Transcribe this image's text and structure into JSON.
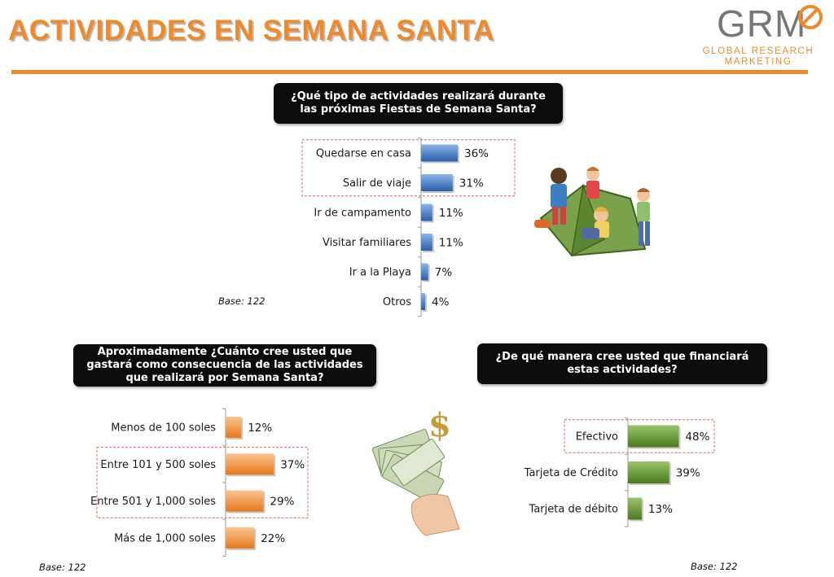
{
  "page": {
    "title": "ACTIVIDADES EN SEMANA SANTA"
  },
  "logo": {
    "letters": "GRM",
    "line1": "GLOBAL RESEARCH",
    "line2": "MARKETING"
  },
  "questions": {
    "q1": "¿Qué tipo de actividades realizará durante las próximas Fiestas de Semana Santa?",
    "q2": "Aproximadamente ¿Cuánto cree usted que gastará como consecuencia de las actividades que realizará por Semana Santa?",
    "q3": "¿De qué manera cree usted que financiará estas actividades?"
  },
  "bases": {
    "b1": "Base: 122",
    "b2": "Base: 122",
    "b3": "Base: 122"
  },
  "colors": {
    "accent": "#ef8a2c",
    "blue": "#3f77c4",
    "orange": "#f28b30",
    "green": "#5e8f2b",
    "highlight": "#e06060"
  },
  "chart_data": [
    {
      "type": "bar",
      "orientation": "horizontal",
      "categories": [
        "Quedarse en casa",
        "Salir de viaje",
        "Ir de campamento",
        "Visitar familiares",
        "Ir a la Playa",
        "Otros"
      ],
      "values": [
        36,
        31,
        11,
        11,
        7,
        4
      ],
      "value_labels": [
        "36%",
        "31%",
        "11%",
        "11%",
        "7%",
        "4%"
      ],
      "highlighted": [
        "Quedarse en casa",
        "Salir de viaje"
      ],
      "bar_color": "blue"
    },
    {
      "type": "bar",
      "orientation": "horizontal",
      "categories": [
        "Menos de 100 soles",
        "Entre 101 y 500 soles",
        "Entre 501 y 1,000 soles",
        "Más de 1,000 soles"
      ],
      "values": [
        12,
        37,
        29,
        22
      ],
      "value_labels": [
        "12%",
        "37%",
        "29%",
        "22%"
      ],
      "highlighted": [
        "Entre 101 y 500 soles",
        "Entre 501 y 1,000 soles"
      ],
      "bar_color": "orange"
    },
    {
      "type": "bar",
      "orientation": "horizontal",
      "categories": [
        "Efectivo",
        "Tarjeta de Crédito",
        "Tarjeta de débito"
      ],
      "values": [
        48,
        39,
        13
      ],
      "value_labels": [
        "48%",
        "39%",
        "13%"
      ],
      "highlighted": [
        "Efectivo"
      ],
      "bar_color": "green"
    }
  ]
}
